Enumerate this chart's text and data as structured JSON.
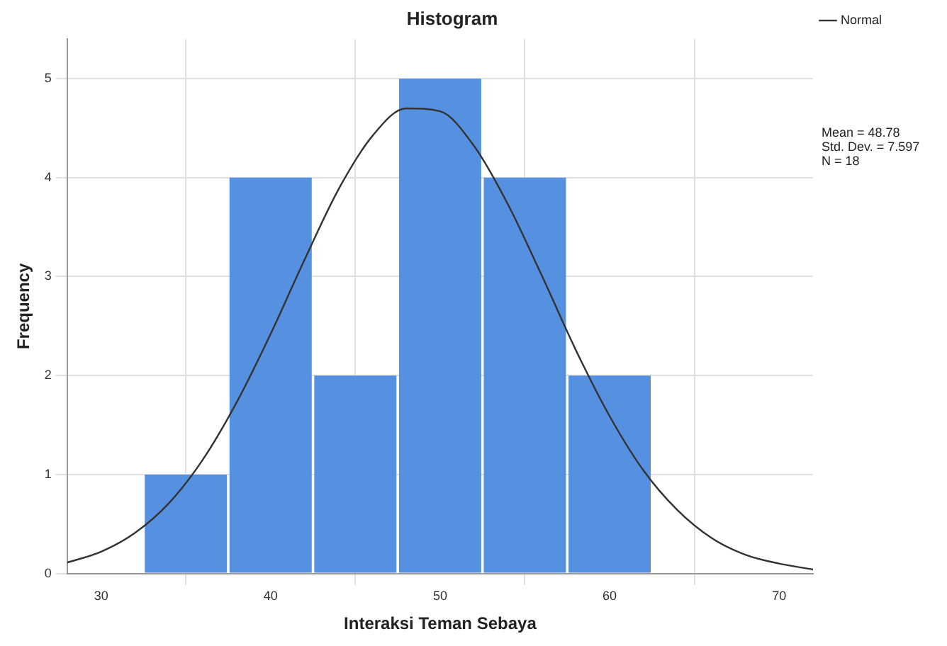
{
  "chart_data": {
    "type": "histogram",
    "title": "Histogram",
    "xlabel": "Interaksi Teman Sebaya",
    "ylabel": "Frequency",
    "bins": [
      32.5,
      37.5,
      42.5,
      47.5,
      52.5,
      57.5,
      62.5
    ],
    "values": [
      1,
      4,
      2,
      5,
      4,
      2
    ],
    "color": "#5591e0",
    "series": [
      {
        "name": "Normal",
        "type": "line",
        "color": "#333333",
        "x": [
          28,
          30,
          32,
          34,
          36,
          38,
          40,
          42,
          44,
          46,
          48,
          50,
          52,
          54,
          56,
          58,
          60,
          62,
          64,
          66,
          68,
          70,
          72
        ],
        "values": [
          0.11,
          0.22,
          0.41,
          0.71,
          1.15,
          1.73,
          2.42,
          3.17,
          3.88,
          4.42,
          4.7,
          4.67,
          4.32,
          3.73,
          3.01,
          2.26,
          1.59,
          1.04,
          0.64,
          0.36,
          0.19,
          0.1,
          0.04
        ]
      }
    ],
    "xlim": [
      28,
      72
    ],
    "xticks": [
      30,
      40,
      50,
      60,
      70
    ],
    "ylim": [
      0,
      5.4
    ],
    "yticks": [
      0,
      1,
      2,
      3,
      4,
      5
    ],
    "grid": true,
    "legend": "top right",
    "marker": "none",
    "line_style": "solid",
    "annotations": [
      "Mean = 48.78\nStd. Dev. = 7.597\nN = 18"
    ]
  }
}
